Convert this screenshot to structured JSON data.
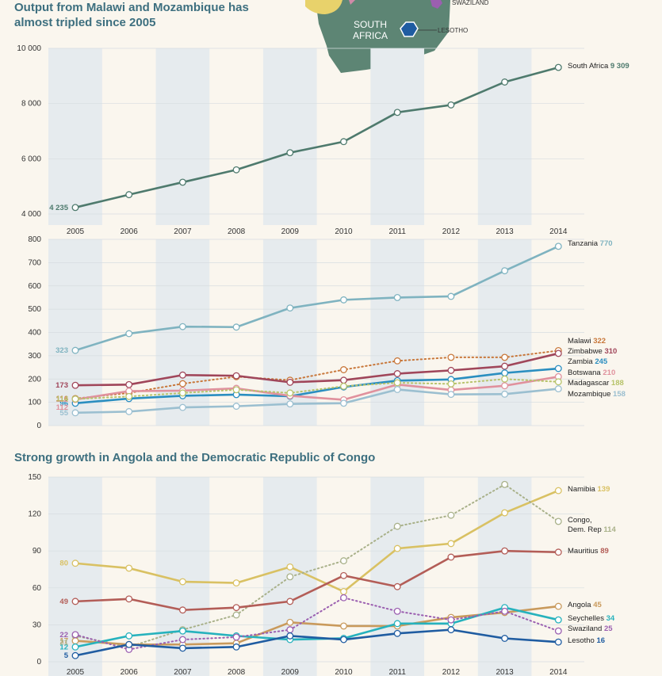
{
  "headings": {
    "top": "Output from Malawi and Mozambique has\nalmost tripled since 2005",
    "bottom": "Strong growth in Angola and the Democratic Republic of Congo"
  },
  "map_labels": {
    "south_africa": "SOUTH\nAFRICA",
    "swaziland": "SWAZILAND",
    "lesotho": "LESOTHO"
  },
  "colors": {
    "background": "#faf6ee",
    "band": "#e6ebee",
    "south_africa_line": "#4e7a6d",
    "map_land": "#5d8574"
  },
  "chart_data": [
    {
      "type": "line",
      "x": [
        "2005",
        "2006",
        "2007",
        "2008",
        "2009",
        "2010",
        "2011",
        "2012",
        "2013",
        "2014"
      ],
      "ylim": [
        4000,
        10000
      ],
      "yticks": [
        "4 000",
        "6 000",
        "8 000",
        "10 000"
      ],
      "series": [
        {
          "name": "South Africa",
          "color": "#4e7a6d",
          "dotted": false,
          "start_label": "4 235",
          "end_value": "9 309",
          "values": [
            4235,
            4700,
            5150,
            5600,
            6220,
            6620,
            7680,
            7950,
            8780,
            9309
          ]
        }
      ]
    },
    {
      "type": "line",
      "x": [
        "2005",
        "2006",
        "2007",
        "2008",
        "2009",
        "2010",
        "2011",
        "2012",
        "2013",
        "2014"
      ],
      "ylim": [
        0,
        800
      ],
      "yticks": [
        "0",
        "100",
        "200",
        "300",
        "400",
        "500",
        "600",
        "700",
        "800"
      ],
      "series": [
        {
          "name": "Tanzania",
          "color": "#7fb3c0",
          "dotted": false,
          "start_label": "323",
          "end_value": "770",
          "values": [
            323,
            395,
            425,
            423,
            505,
            540,
            550,
            555,
            665,
            770
          ]
        },
        {
          "name": "Malawi",
          "color": "#c8773a",
          "dotted": true,
          "start_label": "116",
          "end_value": "322",
          "values": [
            116,
            140,
            180,
            210,
            195,
            240,
            278,
            293,
            293,
            322
          ]
        },
        {
          "name": "Zimbabwe",
          "color": "#a0465a",
          "dotted": false,
          "start_label": "173",
          "end_value": "310",
          "values": [
            173,
            176,
            217,
            214,
            186,
            195,
            223,
            237,
            255,
            310
          ]
        },
        {
          "name": "Zambia",
          "color": "#2a8ec0",
          "dotted": false,
          "start_label": "96",
          "end_value": "245",
          "values": [
            96,
            116,
            128,
            133,
            126,
            166,
            193,
            198,
            226,
            245
          ]
        },
        {
          "name": "Botswana",
          "color": "#e0919d",
          "dotted": false,
          "start_label": "112",
          "end_value": "210",
          "values": [
            112,
            148,
            150,
            160,
            128,
            111,
            176,
            153,
            171,
            210
          ]
        },
        {
          "name": "Madagascar",
          "color": "#b7c36a",
          "dotted": true,
          "start_label": "114",
          "end_value": "188",
          "values": [
            114,
            125,
            140,
            154,
            140,
            169,
            184,
            179,
            200,
            188
          ]
        },
        {
          "name": "Mozambique",
          "color": "#9bbfd0",
          "dotted": false,
          "start_label": "55",
          "end_value": "158",
          "values": [
            55,
            60,
            78,
            83,
            93,
            96,
            155,
            134,
            135,
            158
          ]
        }
      ],
      "extra_start_labels": [
        {
          "text": "112",
          "color": "#e0919d",
          "value": 112
        }
      ]
    },
    {
      "type": "line",
      "x": [
        "2005",
        "2006",
        "2007",
        "2008",
        "2009",
        "2010",
        "2011",
        "2012",
        "2013",
        "2014"
      ],
      "ylim": [
        0,
        150
      ],
      "yticks": [
        "0",
        "30",
        "60",
        "90",
        "120",
        "150"
      ],
      "series": [
        {
          "name": "Namibia",
          "color": "#d9c163",
          "dotted": false,
          "start_label": "80",
          "end_value": "139",
          "values": [
            80,
            76,
            65,
            64,
            77,
            57,
            92,
            96,
            121,
            139
          ]
        },
        {
          "name": "Congo, Dem. Rep",
          "color": "#a9b18a",
          "dotted": true,
          "start_label": "",
          "end_value": "114",
          "values": [
            21,
            12,
            26,
            38,
            69,
            82,
            110,
            119,
            144,
            114
          ]
        },
        {
          "name": "Mauritius",
          "color": "#b35d57",
          "dotted": false,
          "start_label": "49",
          "end_value": "89",
          "values": [
            49,
            51,
            42,
            44,
            49,
            70,
            61,
            85,
            90,
            89
          ]
        },
        {
          "name": "Angola",
          "color": "#c99a5c",
          "dotted": false,
          "start_label": "17",
          "end_value": "45",
          "values": [
            17,
            14,
            14,
            15,
            32,
            29,
            29,
            36,
            40,
            45
          ]
        },
        {
          "name": "Seychelles",
          "color": "#26b2bd",
          "dotted": false,
          "start_label": "12",
          "end_value": "34",
          "values": [
            12,
            21,
            25,
            21,
            18,
            19,
            31,
            31,
            44,
            34
          ]
        },
        {
          "name": "Swaziland",
          "color": "#9b5fb0",
          "dotted": true,
          "start_label": "22",
          "end_value": "25",
          "values": [
            22,
            10,
            18,
            20,
            26,
            52,
            41,
            34,
            41,
            25
          ]
        },
        {
          "name": "Lesotho",
          "color": "#1f5ca1",
          "dotted": false,
          "start_label": "5",
          "end_value": "16",
          "values": [
            5,
            14,
            11,
            12,
            21,
            18,
            23,
            26,
            19,
            16
          ]
        }
      ],
      "extra_start_labels": [
        {
          "text": "21",
          "color": "#a9b18a",
          "value": 21
        }
      ]
    }
  ]
}
